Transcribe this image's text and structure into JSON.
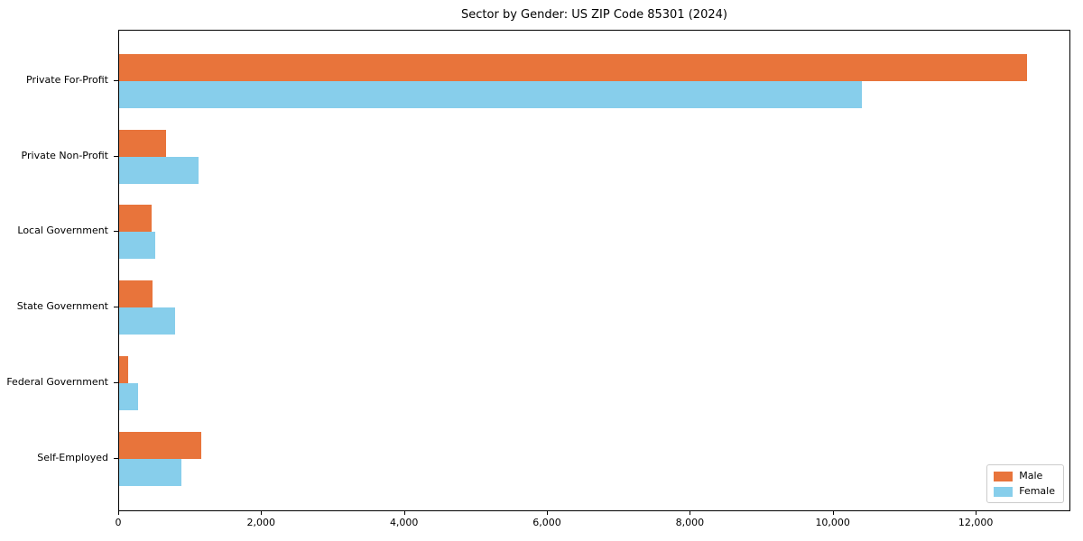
{
  "title": "Sector by Gender: US ZIP Code 85301 (2024)",
  "chart_data": {
    "type": "bar",
    "orientation": "horizontal",
    "title": "Sector by Gender: US ZIP Code 85301 (2024)",
    "xlabel": "",
    "ylabel": "",
    "categories": [
      "Private For-Profit",
      "Private Non-Profit",
      "Local Government",
      "State Government",
      "Federal Government",
      "Self-Employed"
    ],
    "series": [
      {
        "name": "Male",
        "color": "#E8743B",
        "values": [
          12700,
          660,
          460,
          470,
          130,
          1150
        ]
      },
      {
        "name": "Female",
        "color": "#87CEEB",
        "values": [
          10400,
          1110,
          510,
          780,
          270,
          870
        ]
      }
    ],
    "xlim": [
      0,
      13300
    ],
    "xticks": [
      0,
      2000,
      4000,
      6000,
      8000,
      10000,
      12000
    ],
    "xtick_labels": [
      "0",
      "2,000",
      "4,000",
      "6,000",
      "8,000",
      "10,000",
      "12,000"
    ],
    "grid": false,
    "legend": {
      "position": "lower right",
      "entries": [
        "Male",
        "Female"
      ]
    }
  }
}
